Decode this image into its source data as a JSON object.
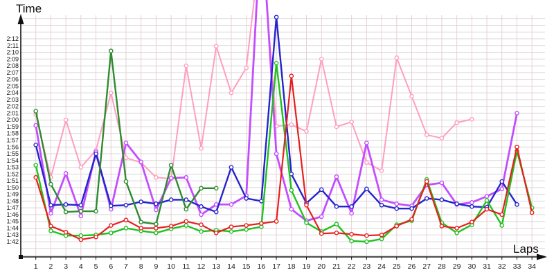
{
  "axes": {
    "y_title": "Time",
    "x_title": "Laps",
    "y_tick_labels": [
      "2:12",
      "2:11",
      "2:10",
      "2:09",
      "2:08",
      "2:07",
      "2:06",
      "2:05",
      "2:04",
      "2:03",
      "2:02",
      "2:01",
      "2:00",
      "1:59",
      "1:58",
      "1:57",
      "1:56",
      "1:55",
      "1:54",
      "1:53",
      "1:52",
      "1:51",
      "1:50",
      "1:49",
      "1:48",
      "1:47",
      "1:46",
      "1:45",
      "1:44",
      "1:43",
      "1:42"
    ],
    "x_tick_labels": [
      "1",
      "2",
      "3",
      "4",
      "5",
      "6",
      "7",
      "8",
      "9",
      "10",
      "11",
      "12",
      "13",
      "14",
      "15",
      "16",
      "17",
      "18",
      "19",
      "20",
      "21",
      "22",
      "23",
      "24",
      "25",
      "26",
      "27",
      "28",
      "29",
      "30",
      "31",
      "32",
      "33",
      "34"
    ]
  },
  "chart_data": {
    "type": "line",
    "title": "",
    "xlabel": "Laps",
    "ylabel": "Time",
    "x_range": [
      1,
      34
    ],
    "y_axis": {
      "labeled_min": "1:42",
      "labeled_max": "2:12",
      "unit": "minutes:seconds",
      "values_stored_as": "seconds"
    },
    "grid": true,
    "legend": "none",
    "notes": "values in seconds per lap; points above 135.5s extend past the chart top (clipped spikes at laps 16-17)",
    "series": [
      {
        "name": "pink",
        "color": "#ff9ec0",
        "first_lap": 1,
        "values": [
          120.8,
          111.5,
          120.0,
          113.0,
          115.5,
          124.0,
          114.4,
          113.7,
          111.5,
          111.3,
          128.0,
          115.8,
          130.9,
          124.0,
          127.7,
          147.0,
          119.1,
          119.3,
          118.3,
          129.0,
          119.0,
          119.7,
          113.7,
          112.5,
          129.2,
          123.5,
          117.8,
          117.3,
          119.6,
          120.1
        ]
      },
      {
        "name": "violet",
        "color": "#c44dff",
        "first_lap": 1,
        "values": [
          119.2,
          106.2,
          112.1,
          105.8,
          115.3,
          106.8,
          116.6,
          113.8,
          106.7,
          111.4,
          111.5,
          106.0,
          107.5,
          107.5,
          108.8,
          150.0,
          115.0,
          106.8,
          105.1,
          105.7,
          111.6,
          106.2,
          116.6,
          108.2,
          107.6,
          107.3,
          110.4,
          110.7,
          107.5,
          107.8,
          108.7,
          109.8,
          121.0
        ]
      },
      {
        "name": "blue",
        "color": "#2424cc",
        "first_lap": 1,
        "values": [
          116.3,
          107.4,
          107.5,
          107.4,
          115.0,
          107.3,
          107.4,
          107.9,
          107.6,
          108.2,
          108.2,
          107.2,
          106.4,
          113.0,
          108.4,
          108.0,
          135.2,
          112.0,
          107.7,
          109.7,
          107.2,
          107.2,
          109.8,
          107.4,
          106.9,
          106.9,
          108.4,
          108.2,
          107.6,
          107.2,
          107.1,
          110.9,
          107.5
        ]
      },
      {
        "name": "dark-green",
        "color": "#2e8b2e",
        "first_lap": 1,
        "values": [
          121.3,
          110.5,
          106.4,
          106.5,
          106.5,
          130.2,
          110.9,
          104.9,
          104.6,
          113.3,
          106.8,
          109.9,
          109.9
        ]
      },
      {
        "name": "green",
        "color": "#1fc11f",
        "first_lap": 1,
        "values": [
          113.3,
          103.6,
          102.9,
          102.9,
          103.0,
          103.3,
          104.0,
          103.6,
          103.3,
          103.9,
          104.4,
          103.5,
          103.7,
          103.5,
          103.8,
          104.2,
          128.4,
          109.6,
          104.8,
          103.5,
          104.6,
          102.1,
          102.0,
          102.4,
          104.5,
          105.1,
          111.2,
          104.8,
          103.3,
          104.5,
          108.1,
          104.4,
          115.4,
          107.0
        ]
      },
      {
        "name": "red",
        "color": "#e81e1e",
        "first_lap": 1,
        "values": [
          111.5,
          104.3,
          103.4,
          102.3,
          102.7,
          104.4,
          105.2,
          104.0,
          104.0,
          104.3,
          105.0,
          104.5,
          103.3,
          104.2,
          104.4,
          104.7,
          105.0,
          126.5,
          107.4,
          103.2,
          103.3,
          103.1,
          102.9,
          103.0,
          104.3,
          105.3,
          110.9,
          104.3,
          104.0,
          104.9,
          106.8,
          106.0,
          116.0,
          106.3
        ]
      }
    ]
  },
  "style_colors": {
    "horizontal_grid": "#d9d9d9",
    "vertical_grid": "#e6cfd4",
    "axis": "#111111",
    "tick_label": "#1a1a1a"
  }
}
